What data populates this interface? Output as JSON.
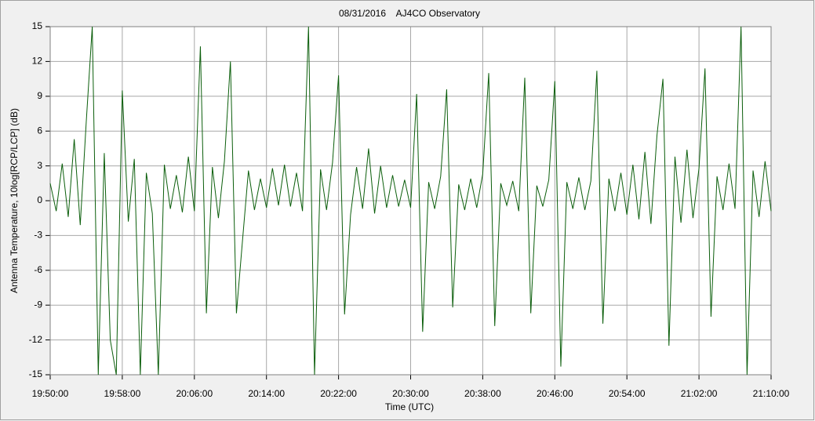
{
  "chart_data": {
    "type": "line",
    "title": "08/31/2016    AJ4CO Observatory",
    "x_label": "Time (UTC)",
    "y_label": "Antenna Temperature, 10log[RCP/LCP] (dB)",
    "color": "#0b5e0b",
    "grid": true,
    "xlim": [
      "19:50:00",
      "21:10:00"
    ],
    "xticks": [
      "19:50:00",
      "19:58:00",
      "20:06:00",
      "20:14:00",
      "20:22:00",
      "20:30:00",
      "20:38:00",
      "20:46:00",
      "20:54:00",
      "21:02:00",
      "21:10:00"
    ],
    "ylim": [
      -15,
      15
    ],
    "yticks": [
      15,
      12,
      9,
      6,
      3,
      0,
      -3,
      -6,
      -9,
      -12,
      -15
    ],
    "x": [
      "19:50:00",
      "19:50:40",
      "19:51:20",
      "19:52:00",
      "19:52:40",
      "19:53:20",
      "19:54:00",
      "19:54:40",
      "19:55:20",
      "19:56:00",
      "19:56:40",
      "19:57:20",
      "19:58:00",
      "19:58:40",
      "19:59:20",
      "20:00:00",
      "20:00:40",
      "20:01:20",
      "20:02:00",
      "20:02:40",
      "20:03:20",
      "20:04:00",
      "20:04:40",
      "20:05:20",
      "20:06:00",
      "20:06:40",
      "20:07:20",
      "20:08:00",
      "20:08:40",
      "20:09:20",
      "20:10:00",
      "20:10:40",
      "20:11:20",
      "20:12:00",
      "20:12:40",
      "20:13:20",
      "20:14:00",
      "20:14:40",
      "20:15:20",
      "20:16:00",
      "20:16:40",
      "20:17:20",
      "20:18:00",
      "20:18:40",
      "20:19:20",
      "20:20:00",
      "20:20:40",
      "20:21:20",
      "20:22:00",
      "20:22:40",
      "20:23:20",
      "20:24:00",
      "20:24:40",
      "20:25:20",
      "20:26:00",
      "20:26:40",
      "20:27:20",
      "20:28:00",
      "20:28:40",
      "20:29:20",
      "20:30:00",
      "20:30:40",
      "20:31:20",
      "20:32:00",
      "20:32:40",
      "20:33:20",
      "20:34:00",
      "20:34:40",
      "20:35:20",
      "20:36:00",
      "20:36:40",
      "20:37:20",
      "20:38:00",
      "20:38:40",
      "20:39:20",
      "20:40:00",
      "20:40:40",
      "20:41:20",
      "20:42:00",
      "20:42:40",
      "20:43:20",
      "20:44:00",
      "20:44:40",
      "20:45:20",
      "20:46:00",
      "20:46:40",
      "20:47:20",
      "20:48:00",
      "20:48:40",
      "20:49:20",
      "20:50:00",
      "20:50:40",
      "20:51:20",
      "20:52:00",
      "20:52:40",
      "20:53:20",
      "20:54:00",
      "20:54:40",
      "20:55:20",
      "20:56:00",
      "20:56:40",
      "20:57:20",
      "20:58:00",
      "20:58:40",
      "20:59:20",
      "21:00:00",
      "21:00:40",
      "21:01:20",
      "21:02:00",
      "21:02:40",
      "21:03:20",
      "21:04:00",
      "21:04:40",
      "21:05:20",
      "21:06:00",
      "21:06:40",
      "21:07:20",
      "21:08:00",
      "21:08:40",
      "21:09:20",
      "21:10:00"
    ],
    "values": [
      1.5,
      -0.9,
      3.2,
      -1.4,
      5.3,
      -2.1,
      6.8,
      15,
      -15,
      4.1,
      -12,
      -15,
      9.5,
      -1.8,
      3.6,
      -15,
      2.4,
      -1.1,
      -15,
      3.1,
      -0.7,
      2.2,
      -1.0,
      3.8,
      -0.9,
      13.3,
      -9.7,
      2.9,
      -1.5,
      3.4,
      12,
      -9.7,
      -3.5,
      2.6,
      -0.8,
      1.9,
      -0.6,
      2.8,
      -0.4,
      3.1,
      -0.5,
      2.4,
      -0.9,
      15,
      -15,
      2.7,
      -0.8,
      3.3,
      10.8,
      -9.8,
      -1.2,
      2.9,
      -0.7,
      4.5,
      -1.1,
      3.0,
      -0.6,
      2.2,
      -0.5,
      1.8,
      -0.6,
      9.2,
      -11.3,
      1.6,
      -0.7,
      2.1,
      9.6,
      -9.2,
      1.4,
      -0.8,
      1.9,
      -0.6,
      2.3,
      11,
      -10.8,
      1.5,
      -0.4,
      1.7,
      -0.9,
      10.6,
      -9.7,
      1.3,
      -0.5,
      1.8,
      10.3,
      -14.3,
      1.6,
      -0.7,
      2.0,
      -0.8,
      1.7,
      11.2,
      -10.6,
      1.9,
      -0.9,
      2.4,
      -1.2,
      3.1,
      -1.6,
      4.2,
      -2.0,
      5.6,
      10.5,
      -12.5,
      3.8,
      -1.9,
      4.4,
      -1.5,
      2.8,
      11.4,
      -10,
      2.1,
      -0.8,
      3.2,
      -0.7,
      15,
      -15,
      2.6,
      -1.4,
      3.4,
      -0.9
    ]
  }
}
